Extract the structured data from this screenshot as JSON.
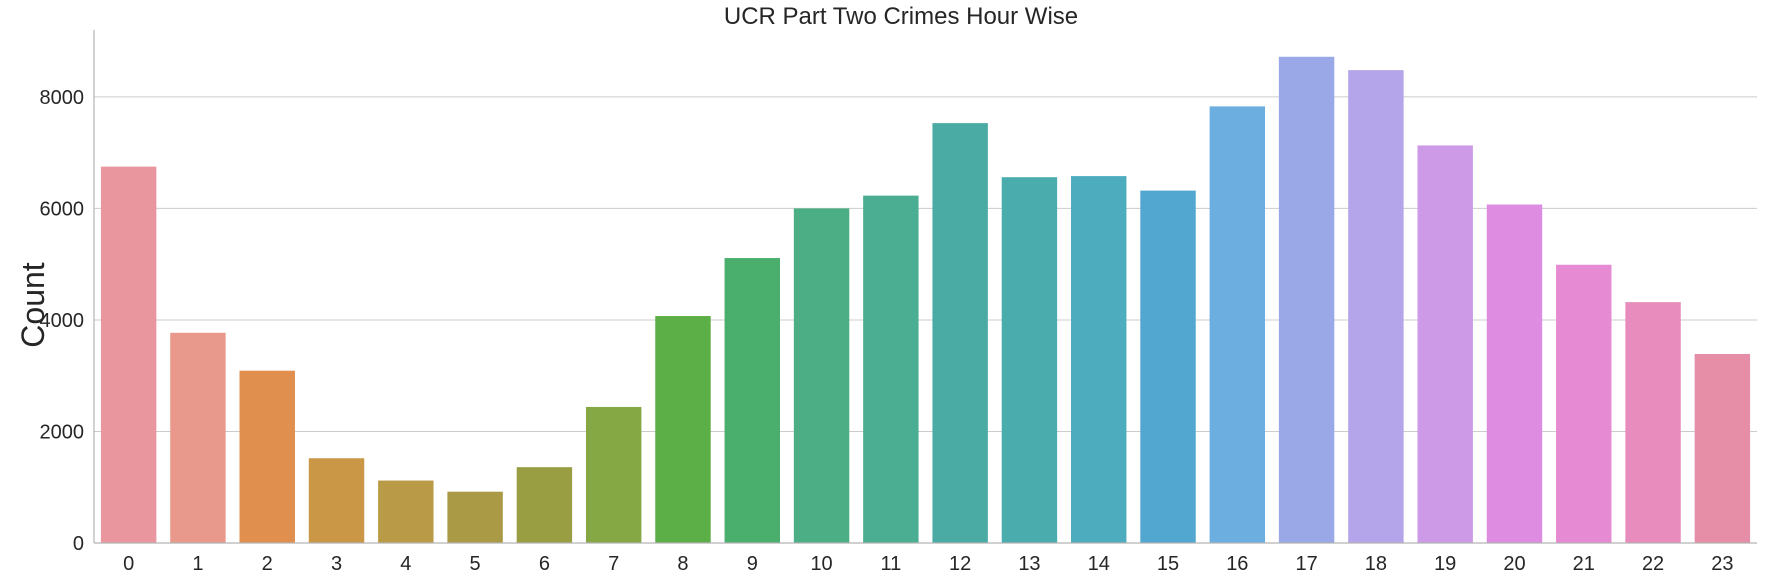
{
  "chart_data": {
    "type": "bar",
    "title": "UCR Part Two Crimes Hour Wise",
    "xlabel": "",
    "ylabel": "Count",
    "categories": [
      "0",
      "1",
      "2",
      "3",
      "4",
      "5",
      "6",
      "7",
      "8",
      "9",
      "10",
      "11",
      "12",
      "13",
      "14",
      "15",
      "16",
      "17",
      "18",
      "19",
      "20",
      "21",
      "22",
      "23"
    ],
    "values": [
      6750,
      3770,
      3090,
      1520,
      1120,
      920,
      1360,
      2440,
      4070,
      5110,
      6000,
      6230,
      7530,
      6560,
      6580,
      6320,
      7830,
      8720,
      8480,
      7130,
      6070,
      4990,
      4320,
      3390
    ],
    "ylim": [
      0,
      9200
    ],
    "yticks": [
      0,
      2000,
      4000,
      6000,
      8000
    ],
    "grid": true,
    "colors": [
      "#e9969f",
      "#e8998b",
      "#e08f4f",
      "#c99745",
      "#b99a47",
      "#aa9a45",
      "#999e42",
      "#86a844",
      "#5cae46",
      "#4aae6d",
      "#4bae84",
      "#4bae92",
      "#4aaba4",
      "#4bacae",
      "#4dacbd",
      "#51a7cf",
      "#6daee0",
      "#9aa8e8",
      "#b4a5ea",
      "#cc9ae6",
      "#de8be2",
      "#e68bd3",
      "#e78cbd",
      "#e68ea8"
    ]
  }
}
